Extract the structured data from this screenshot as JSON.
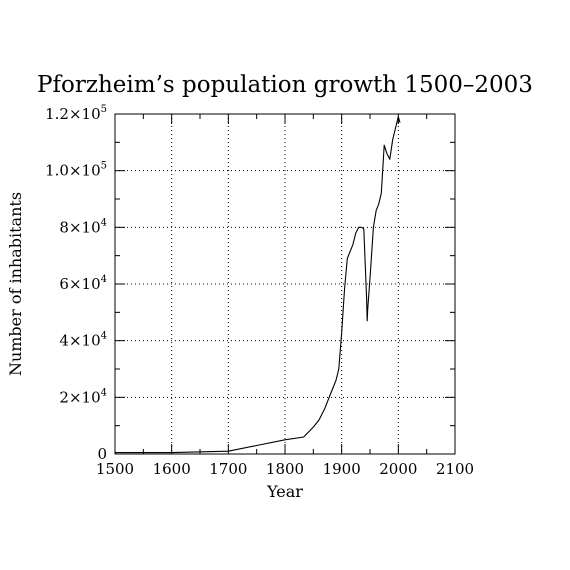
{
  "chart_data": {
    "type": "line",
    "title": "Pforzheim’s population growth 1500–2003",
    "xlabel": "Year",
    "ylabel": "Number of inhabitants",
    "xlim": [
      1500,
      2100
    ],
    "ylim": [
      0,
      120000
    ],
    "grid": true,
    "x_ticks": [
      {
        "value": 1500,
        "label": "1500"
      },
      {
        "value": 1600,
        "label": "1600"
      },
      {
        "value": 1700,
        "label": "1700"
      },
      {
        "value": 1800,
        "label": "1800"
      },
      {
        "value": 1900,
        "label": "1900"
      },
      {
        "value": 2000,
        "label": "2000"
      },
      {
        "value": 2100,
        "label": "2100"
      }
    ],
    "y_ticks": [
      {
        "value": 0,
        "mantissa": "0",
        "exponent": ""
      },
      {
        "value": 20000,
        "mantissa": "2×10",
        "exponent": "4"
      },
      {
        "value": 40000,
        "mantissa": "4×10",
        "exponent": "4"
      },
      {
        "value": 60000,
        "mantissa": "6×10",
        "exponent": "4"
      },
      {
        "value": 80000,
        "mantissa": "8×10",
        "exponent": "4"
      },
      {
        "value": 100000,
        "mantissa": "1.0×10",
        "exponent": "5"
      },
      {
        "value": 120000,
        "mantissa": "1.2×10",
        "exponent": "5"
      }
    ],
    "series": [
      {
        "x": [
          1500,
          1600,
          1700,
          1750,
          1800,
          1833,
          1850,
          1860,
          1870,
          1880,
          1890,
          1895,
          1900,
          1905,
          1910,
          1920,
          1925,
          1930,
          1935,
          1939,
          1944,
          1945,
          1946,
          1950,
          1956,
          1961,
          1965,
          1970,
          1975,
          1980,
          1985,
          1990,
          1995,
          2000,
          2003
        ],
        "y": [
          500,
          500,
          1000,
          3000,
          5000,
          6000,
          9500,
          12000,
          16000,
          21000,
          26000,
          30000,
          43000,
          58000,
          69000,
          74000,
          78000,
          80000,
          80000,
          79500,
          55000,
          47000,
          51000,
          62000,
          80000,
          86000,
          88000,
          92000,
          109000,
          106000,
          104000,
          111000,
          115000,
          119000,
          117000
        ]
      }
    ]
  }
}
